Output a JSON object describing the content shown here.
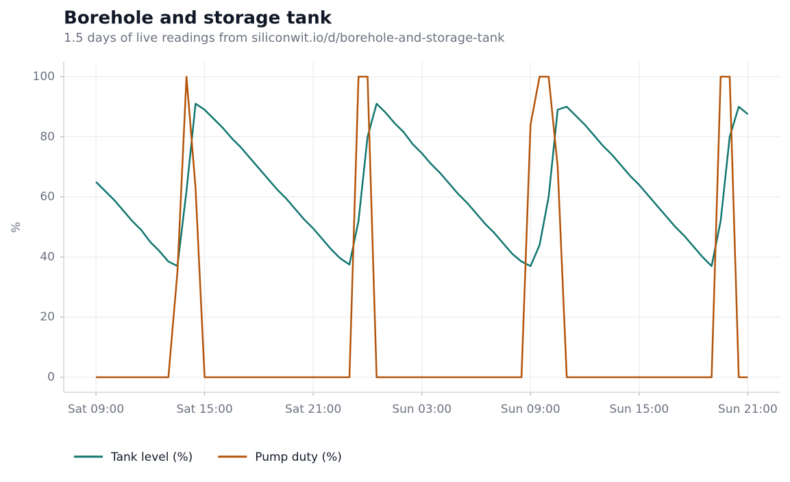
{
  "chart_data": {
    "type": "line",
    "title": "Borehole and storage tank",
    "subtitle": "1.5 days of live readings from siliconwit.io/d/borehole-and-storage-tank",
    "y_label": "%",
    "x": [
      0,
      0.5,
      1,
      1.5,
      2,
      2.5,
      3,
      3.5,
      4,
      4.5,
      5,
      5.5,
      6,
      6.5,
      7,
      7.5,
      8,
      8.5,
      9,
      9.5,
      10,
      10.5,
      11,
      11.5,
      12,
      12.5,
      13,
      13.5,
      14,
      14.5,
      15,
      15.5,
      16,
      16.5,
      17,
      17.5,
      18,
      18.5,
      19,
      19.5,
      20,
      20.5,
      21,
      21.5,
      22,
      22.5,
      23,
      23.5,
      24,
      24.5,
      25,
      25.5,
      26,
      26.5,
      27,
      27.5,
      28,
      28.5,
      29,
      29.5,
      30,
      30.5,
      31,
      31.5,
      32,
      32.5,
      33,
      33.5,
      34,
      34.5,
      35,
      35.5,
      36
    ],
    "series": [
      {
        "name": "Tank level (%)",
        "color": "#0f766e",
        "values": [
          65,
          62,
          59,
          55.5,
          52,
          49,
          45,
          42,
          38.5,
          37,
          62,
          91,
          89,
          86,
          83,
          79.5,
          76.5,
          73,
          69.5,
          66,
          62.5,
          59.5,
          56,
          52.5,
          49.5,
          46,
          42.5,
          39.5,
          37.5,
          52,
          80,
          91,
          88,
          84.5,
          81.5,
          77.5,
          74.5,
          71,
          68,
          64.5,
          61,
          58,
          54.5,
          51,
          48,
          44.5,
          41,
          38.5,
          37,
          44,
          60,
          89,
          90,
          87,
          84,
          80.5,
          77,
          74,
          70.5,
          67,
          64,
          60.5,
          57,
          53.5,
          50,
          47,
          43.5,
          40,
          37,
          52,
          80,
          90,
          87.5
        ]
      },
      {
        "name": "Pump duty (%)",
        "color": "#b45309",
        "values": [
          0,
          0,
          0,
          0,
          0,
          0,
          0,
          0,
          0,
          35,
          100,
          63,
          0,
          0,
          0,
          0,
          0,
          0,
          0,
          0,
          0,
          0,
          0,
          0,
          0,
          0,
          0,
          0,
          0,
          100,
          100,
          0,
          0,
          0,
          0,
          0,
          0,
          0,
          0,
          0,
          0,
          0,
          0,
          0,
          0,
          0,
          0,
          0,
          84,
          100,
          100,
          70,
          0,
          0,
          0,
          0,
          0,
          0,
          0,
          0,
          0,
          0,
          0,
          0,
          0,
          0,
          0,
          0,
          0,
          100,
          100,
          0,
          0
        ]
      }
    ],
    "xlim": [
      -1.78,
      37.8
    ],
    "xticks": [
      {
        "value": 0,
        "label": "Sat 09:00"
      },
      {
        "value": 6,
        "label": "Sat 15:00"
      },
      {
        "value": 12,
        "label": "Sat 21:00"
      },
      {
        "value": 18,
        "label": "Sun 03:00"
      },
      {
        "value": 24,
        "label": "Sun 09:00"
      },
      {
        "value": 30,
        "label": "Sun 15:00"
      },
      {
        "value": 36,
        "label": "Sun 21:00"
      }
    ],
    "ylim": [
      -5,
      105
    ],
    "yticks": [
      0,
      20,
      40,
      60,
      80,
      100
    ],
    "grid": true,
    "legend": "bottom-left"
  }
}
